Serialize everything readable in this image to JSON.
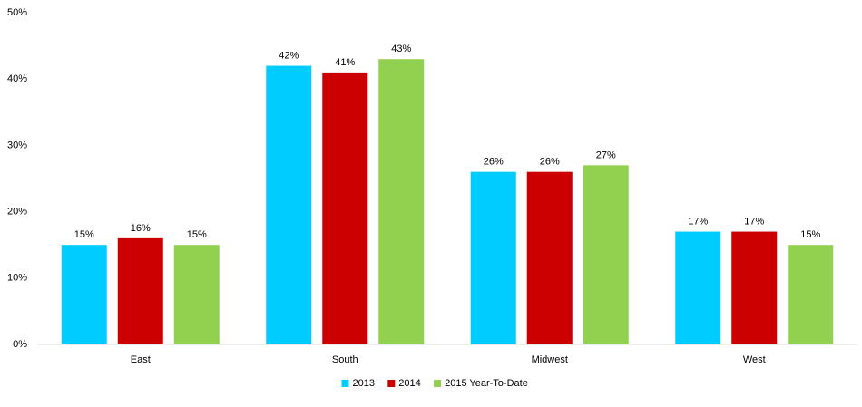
{
  "chart_data": {
    "type": "bar",
    "categories": [
      "East",
      "South",
      "Midwest",
      "West"
    ],
    "series": [
      {
        "name": "2013",
        "color": "#00ccff",
        "values": [
          15,
          42,
          26,
          17
        ],
        "value_labels": [
          "15%",
          "42%",
          "26%",
          "17%"
        ]
      },
      {
        "name": "2014",
        "color": "#cc0000",
        "values": [
          16,
          41,
          26,
          17
        ],
        "value_labels": [
          "16%",
          "41%",
          "26%",
          "17%"
        ]
      },
      {
        "name": "2015 Year-To-Date",
        "color": "#92d050",
        "values": [
          15,
          43,
          27,
          15
        ],
        "value_labels": [
          "15%",
          "43%",
          "27%",
          "15%"
        ]
      }
    ],
    "ylim": [
      0,
      50
    ],
    "yticks": [
      {
        "value": 0,
        "label": "0%"
      },
      {
        "value": 10,
        "label": "10%"
      },
      {
        "value": 20,
        "label": "20%"
      },
      {
        "value": 30,
        "label": "30%"
      },
      {
        "value": 40,
        "label": "40%"
      },
      {
        "value": 50,
        "label": "50%"
      }
    ],
    "grid": false,
    "legend": "bottom"
  }
}
